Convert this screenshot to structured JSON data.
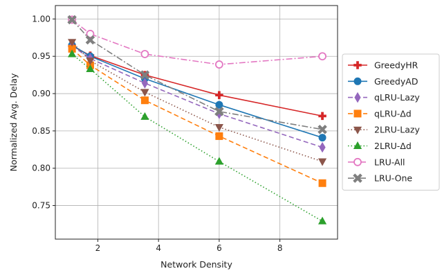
{
  "chart_data": {
    "type": "line",
    "xlabel": "Network Density",
    "ylabel": "Normalized Avg. Delay",
    "xlim": [
      0.6,
      9.9
    ],
    "ylim": [
      0.705,
      1.018
    ],
    "xticks": [
      2,
      4,
      6,
      8
    ],
    "yticks": [
      0.75,
      0.8,
      0.85,
      0.9,
      0.95,
      1.0
    ],
    "xtick_labels": [
      "2",
      "4",
      "6",
      "8"
    ],
    "ytick_labels": [
      "0.75",
      "0.80",
      "0.85",
      "0.90",
      "0.95",
      "1.00"
    ],
    "grid": true,
    "legend_position": "right",
    "series": [
      {
        "name": "GreedyHR",
        "color": "#d62728",
        "dash": "",
        "marker": "plus",
        "hollow": false,
        "x": [
          1.15,
          1.75,
          3.55,
          6.0,
          9.4
        ],
        "y": [
          0.964,
          0.951,
          0.925,
          0.898,
          0.87
        ]
      },
      {
        "name": "GreedyAD",
        "color": "#1f77b4",
        "dash": "",
        "marker": "circle",
        "hollow": false,
        "x": [
          1.15,
          1.75,
          3.55,
          6.0,
          9.4
        ],
        "y": [
          0.965,
          0.95,
          0.92,
          0.885,
          0.841
        ]
      },
      {
        "name": "qLRU-Lazy",
        "color": "#9467bd",
        "dash": "7,4",
        "marker": "diamond",
        "hollow": false,
        "x": [
          1.15,
          1.75,
          3.55,
          6.0,
          9.4
        ],
        "y": [
          0.964,
          0.947,
          0.914,
          0.873,
          0.828
        ]
      },
      {
        "name": "qLRU-Δd",
        "color": "#ff7f0e",
        "dash": "7,4",
        "marker": "square",
        "hollow": false,
        "x": [
          1.15,
          1.75,
          3.55,
          6.0,
          9.4
        ],
        "y": [
          0.96,
          0.938,
          0.891,
          0.843,
          0.78
        ]
      },
      {
        "name": "2LRU-Lazy",
        "color": "#8c564b",
        "dash": "1.5,3",
        "marker": "triangle-down",
        "hollow": false,
        "x": [
          1.15,
          1.75,
          3.55,
          6.0,
          9.4
        ],
        "y": [
          0.969,
          0.944,
          0.902,
          0.855,
          0.809
        ]
      },
      {
        "name": "2LRU-Δd",
        "color": "#2ca02c",
        "dash": "1.5,3",
        "marker": "triangle-up",
        "hollow": false,
        "x": [
          1.15,
          1.75,
          3.55,
          6.0,
          9.4
        ],
        "y": [
          0.953,
          0.933,
          0.869,
          0.809,
          0.729
        ]
      },
      {
        "name": "LRU-All",
        "color": "#e377c2",
        "dash": "9,3,2,3",
        "marker": "circle",
        "hollow": true,
        "x": [
          1.15,
          1.75,
          3.55,
          6.0,
          9.4
        ],
        "y": [
          0.999,
          0.98,
          0.953,
          0.939,
          0.95
        ]
      },
      {
        "name": "LRU-One",
        "color": "#7f7f7f",
        "dash": "9,3,2,3",
        "marker": "x",
        "hollow": false,
        "x": [
          1.15,
          1.75,
          3.55,
          6.0,
          9.4
        ],
        "y": [
          0.999,
          0.972,
          0.925,
          0.876,
          0.852
        ]
      }
    ]
  }
}
